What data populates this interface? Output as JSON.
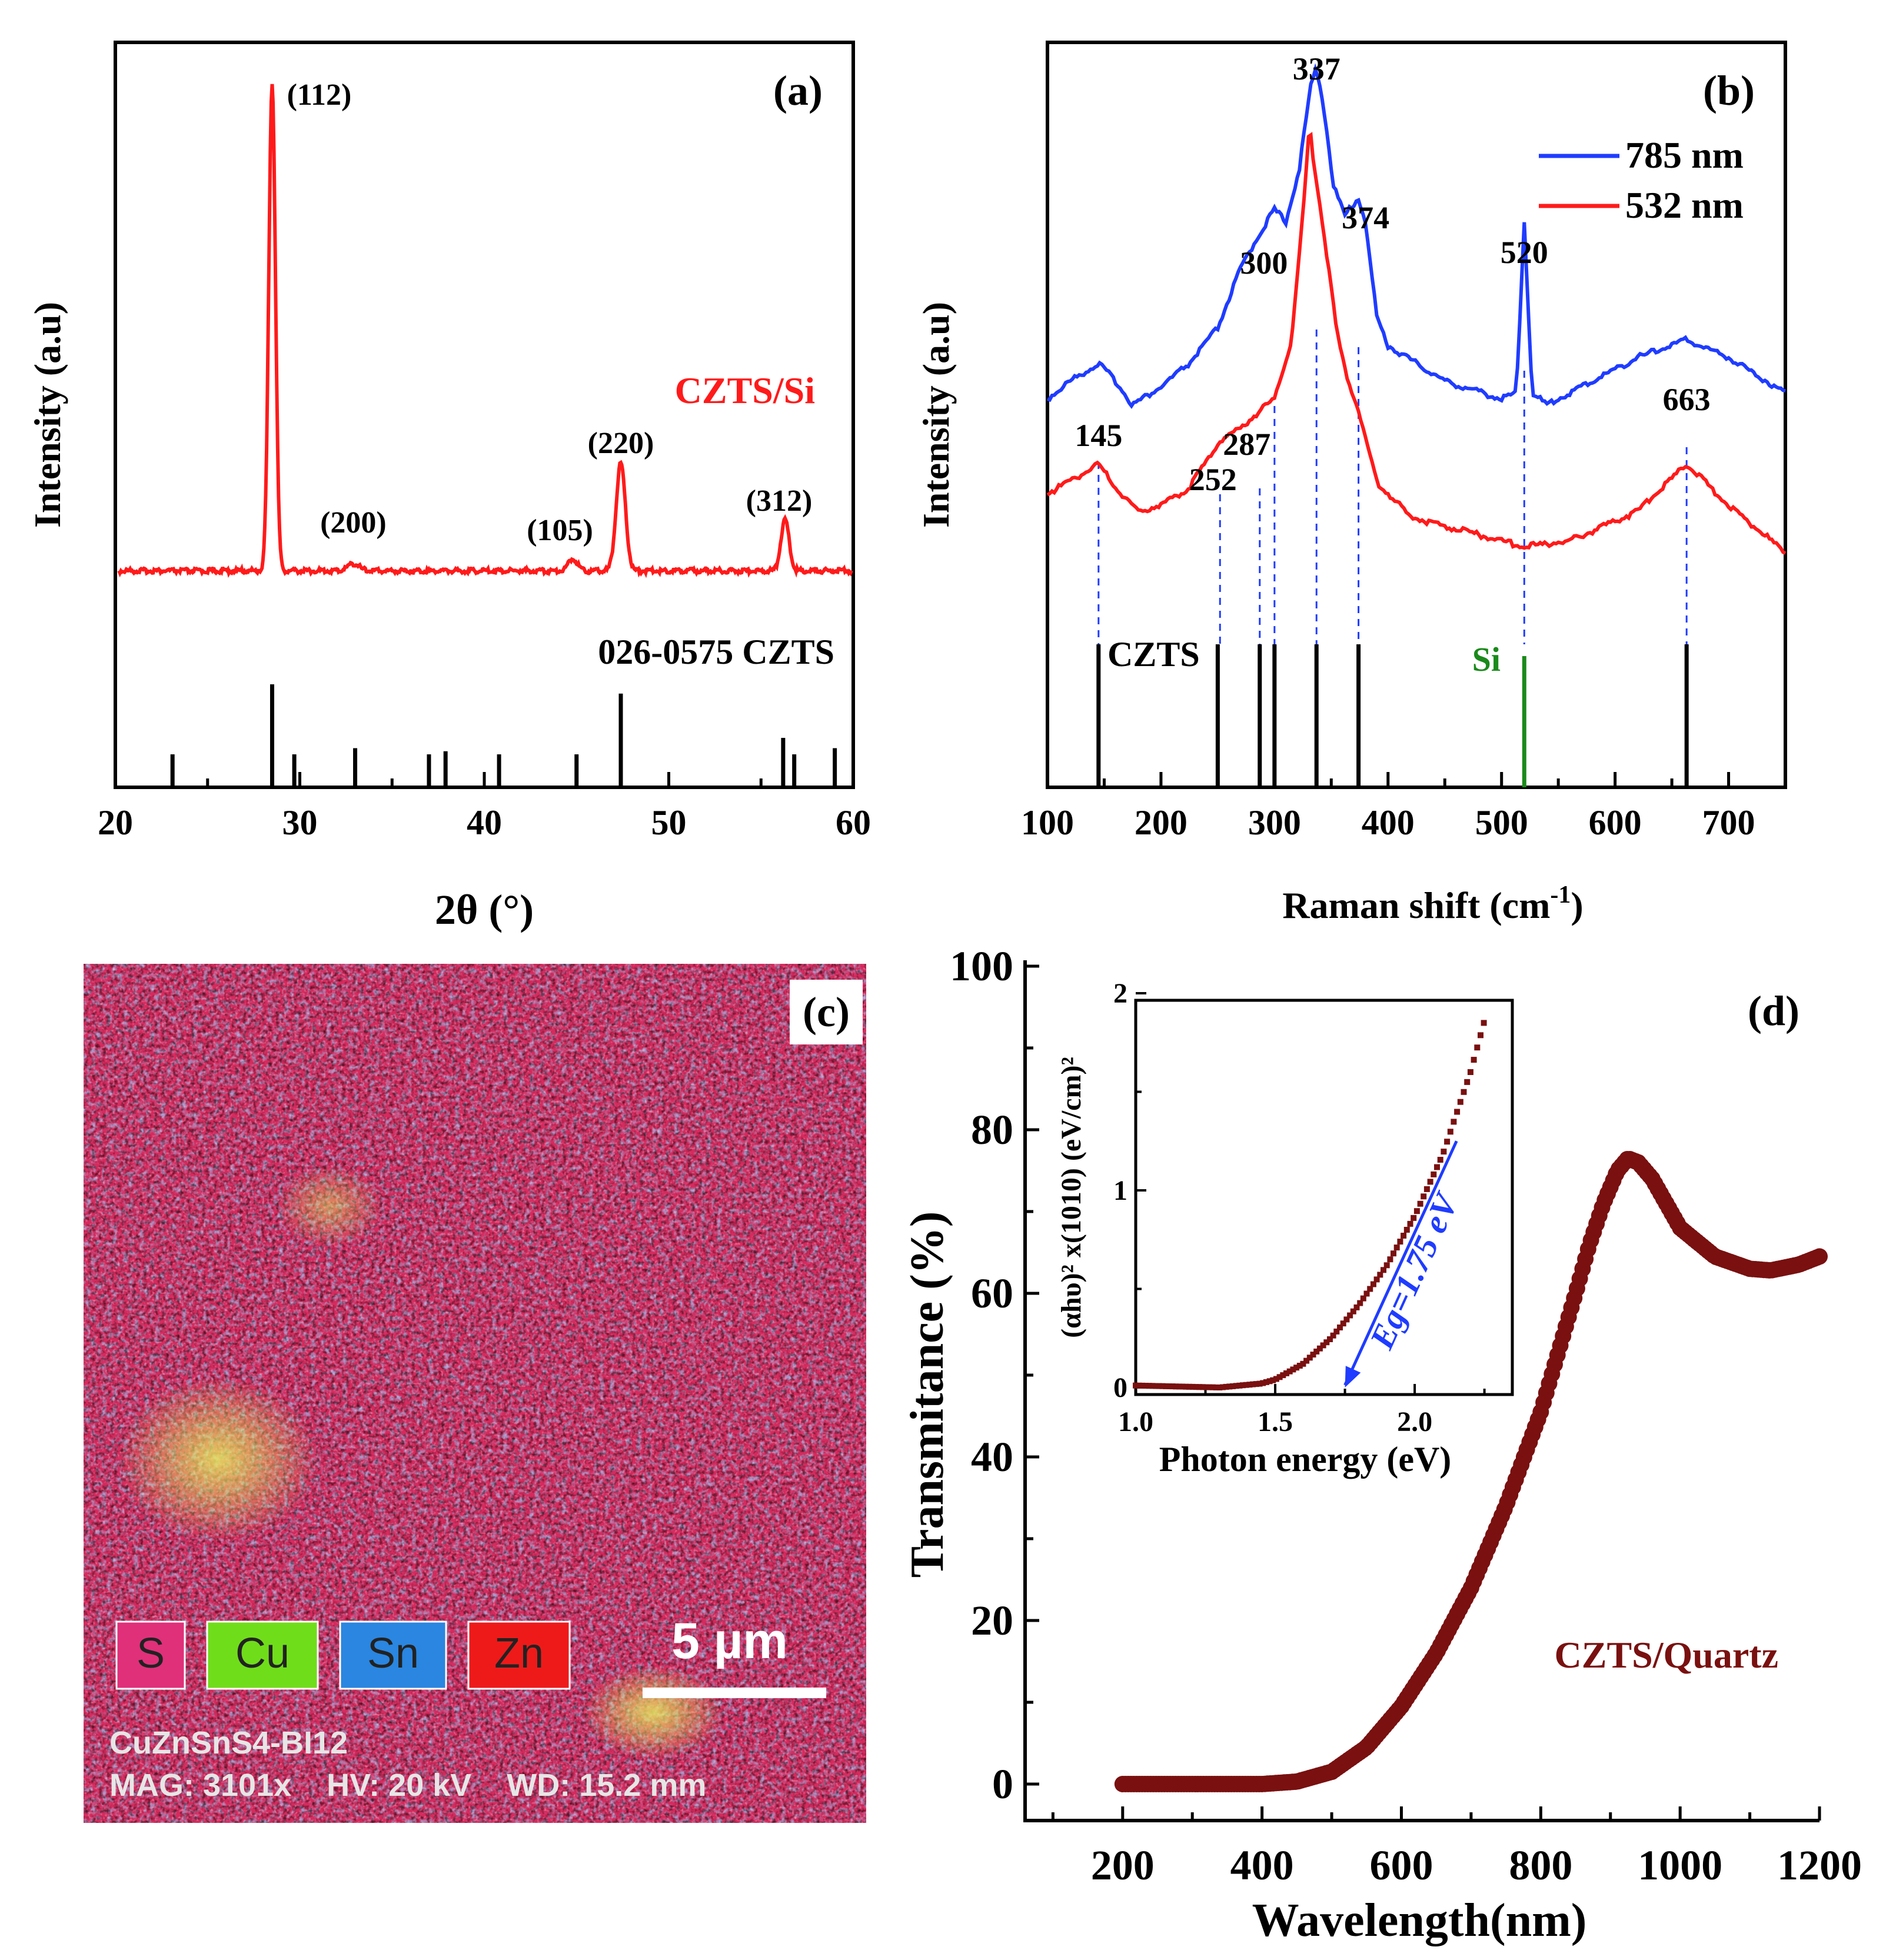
{
  "colors": {
    "red": "#ff1a1a",
    "blue": "#1f3cff",
    "maroon": "#7a1010",
    "green": "#1a8a1a",
    "black": "#000000",
    "S": "#e0307a",
    "Cu": "#70dd1a",
    "Sn": "#2a86e0",
    "Zn": "#ee1a1a"
  },
  "chart_data": [
    {
      "id": "a",
      "panel_label": "(a)",
      "type": "line",
      "title": "",
      "xlabel": "2θ (°)",
      "ylabel": "Intensity (a.u)",
      "xlim": [
        20,
        60
      ],
      "xticks": [
        "20",
        "30",
        "40",
        "50",
        "60"
      ],
      "series": [
        {
          "name": "CZTS/Si",
          "peaks": [
            {
              "x": 28.5,
              "height": 100,
              "width": 0.18
            },
            {
              "x": 32.9,
              "height": 1.5,
              "width": 0.3
            },
            {
              "x": 44.8,
              "height": 2.5,
              "width": 0.25
            },
            {
              "x": 47.4,
              "height": 22,
              "width": 0.25
            },
            {
              "x": 56.3,
              "height": 10.5,
              "width": 0.22
            }
          ]
        }
      ],
      "peak_labels": [
        {
          "x": 28.5,
          "text": "(112)"
        },
        {
          "x": 32.9,
          "text": "(200)"
        },
        {
          "x": 44.1,
          "text": "(105)"
        },
        {
          "x": 47.4,
          "text": "(220)"
        },
        {
          "x": 56.3,
          "text": "(312)"
        }
      ],
      "reference": {
        "name": "026-0575 CZTS",
        "lines": [
          {
            "x": 23.1,
            "intensity": 32
          },
          {
            "x": 28.5,
            "intensity": 100
          },
          {
            "x": 29.7,
            "intensity": 32
          },
          {
            "x": 33.0,
            "intensity": 38
          },
          {
            "x": 37.0,
            "intensity": 32
          },
          {
            "x": 37.9,
            "intensity": 35
          },
          {
            "x": 40.8,
            "intensity": 32
          },
          {
            "x": 45.0,
            "intensity": 32
          },
          {
            "x": 47.4,
            "intensity": 91
          },
          {
            "x": 56.2,
            "intensity": 48
          },
          {
            "x": 56.8,
            "intensity": 32
          },
          {
            "x": 59.0,
            "intensity": 38
          }
        ]
      }
    },
    {
      "id": "b",
      "panel_label": "(b)",
      "type": "line",
      "title": "",
      "xlabel": "Raman shift (cm-1)",
      "ylabel": "Intensity (a.u)",
      "xlim": [
        100,
        750
      ],
      "xticks": [
        "100",
        "200",
        "300",
        "400",
        "500",
        "600",
        "700"
      ],
      "series": [
        {
          "name": "785 nm",
          "color": "blue",
          "points": [
            [
              100,
              0.44
            ],
            [
              120,
              0.47
            ],
            [
              145,
              0.5
            ],
            [
              160,
              0.47
            ],
            [
              175,
              0.43
            ],
            [
              200,
              0.46
            ],
            [
              225,
              0.5
            ],
            [
              250,
              0.56
            ],
            [
              270,
              0.66
            ],
            [
              287,
              0.72
            ],
            [
              300,
              0.76
            ],
            [
              310,
              0.74
            ],
            [
              322,
              0.83
            ],
            [
              332,
              0.97
            ],
            [
              337,
              1.0
            ],
            [
              343,
              0.94
            ],
            [
              352,
              0.8
            ],
            [
              362,
              0.75
            ],
            [
              374,
              0.78
            ],
            [
              380,
              0.74
            ],
            [
              390,
              0.58
            ],
            [
              400,
              0.53
            ],
            [
              450,
              0.47
            ],
            [
              500,
              0.44
            ],
            [
              513,
              0.45
            ],
            [
              520,
              0.74
            ],
            [
              527,
              0.45
            ],
            [
              540,
              0.43
            ],
            [
              580,
              0.47
            ],
            [
              620,
              0.51
            ],
            [
              663,
              0.54
            ],
            [
              700,
              0.51
            ],
            [
              750,
              0.45
            ]
          ]
        },
        {
          "name": "532 nm",
          "color": "red",
          "points": [
            [
              100,
              0.28
            ],
            [
              120,
              0.3
            ],
            [
              145,
              0.33
            ],
            [
              160,
              0.29
            ],
            [
              180,
              0.25
            ],
            [
              200,
              0.26
            ],
            [
              225,
              0.29
            ],
            [
              252,
              0.37
            ],
            [
              270,
              0.39
            ],
            [
              287,
              0.42
            ],
            [
              300,
              0.44
            ],
            [
              315,
              0.54
            ],
            [
              325,
              0.75
            ],
            [
              331,
              0.91
            ],
            [
              334,
              0.85
            ],
            [
              345,
              0.7
            ],
            [
              355,
              0.55
            ],
            [
              365,
              0.47
            ],
            [
              374,
              0.42
            ],
            [
              390,
              0.3
            ],
            [
              420,
              0.24
            ],
            [
              460,
              0.22
            ],
            [
              520,
              0.19
            ],
            [
              560,
              0.2
            ],
            [
              620,
              0.25
            ],
            [
              663,
              0.33
            ],
            [
              700,
              0.26
            ],
            [
              750,
              0.18
            ]
          ]
        }
      ],
      "peak_labels": [
        {
          "x": 145,
          "text": "145"
        },
        {
          "x": 252,
          "text": "252"
        },
        {
          "x": 287,
          "text": "287"
        },
        {
          "x": 300,
          "text": "300"
        },
        {
          "x": 337,
          "text": "337"
        },
        {
          "x": 374,
          "text": "374"
        },
        {
          "x": 520,
          "text": "520"
        },
        {
          "x": 663,
          "text": "663"
        }
      ],
      "reference": {
        "CZTS_label": "CZTS",
        "Si_label": "Si",
        "CZTS_lines": [
          145,
          250,
          287,
          300,
          337,
          374,
          663
        ],
        "Si_lines": [
          520
        ]
      }
    },
    {
      "id": "d",
      "panel_label": "(d)",
      "type": "scatter",
      "title": "",
      "xlabel": "Wavelength(nm)",
      "ylabel": "Transmitance (%)",
      "xlim": [
        60,
        1200
      ],
      "ylim": [
        -3,
        100
      ],
      "xticks": [
        "200",
        "400",
        "600",
        "800",
        "1000",
        "1200"
      ],
      "yticks": [
        "0",
        "20",
        "40",
        "60",
        "80",
        "100"
      ],
      "series": [
        {
          "name": "CZTS/Quartz",
          "color": "maroon",
          "points": [
            [
              200,
              0
            ],
            [
              300,
              0
            ],
            [
              400,
              0
            ],
            [
              450,
              0.3
            ],
            [
              500,
              1.5
            ],
            [
              550,
              4.5
            ],
            [
              600,
              9.5
            ],
            [
              650,
              16
            ],
            [
              700,
              24
            ],
            [
              750,
              34
            ],
            [
              800,
              45.5
            ],
            [
              850,
              60
            ],
            [
              870,
              66
            ],
            [
              890,
              71
            ],
            [
              910,
              75
            ],
            [
              925,
              76.5
            ],
            [
              940,
              76
            ],
            [
              960,
              74
            ],
            [
              1000,
              68
            ],
            [
              1050,
              64.5
            ],
            [
              1100,
              63
            ],
            [
              1130,
              62.8
            ],
            [
              1170,
              63.5
            ],
            [
              1200,
              64.5
            ]
          ]
        }
      ],
      "inset": {
        "type": "scatter",
        "xlabel": "Photon energy (eV)",
        "ylabel": "(αhυ)² x(1010) (eV/cm)²",
        "xlim": [
          1.0,
          2.35
        ],
        "ylim": [
          0,
          2
        ],
        "xticks": [
          "1.0",
          "1.5",
          "2.0"
        ],
        "yticks": [
          "0",
          "1",
          "2"
        ],
        "annotation": "Eg=1.75 eV",
        "fit_line": [
          [
            1.75,
            0.0
          ],
          [
            2.15,
            1.25
          ]
        ],
        "points": [
          [
            1.0,
            0.01
          ],
          [
            1.3,
            0.0
          ],
          [
            1.45,
            0.02
          ],
          [
            1.5,
            0.04
          ],
          [
            1.6,
            0.12
          ],
          [
            1.7,
            0.25
          ],
          [
            1.8,
            0.42
          ],
          [
            1.9,
            0.62
          ],
          [
            2.0,
            0.87
          ],
          [
            2.1,
            1.18
          ],
          [
            2.2,
            1.6
          ],
          [
            2.25,
            1.86
          ]
        ]
      }
    }
  ],
  "panel_c": {
    "panel_label": "(c)",
    "legend": [
      "S",
      "Cu",
      "Sn",
      "Zn"
    ],
    "scale_bar": "5 µm",
    "caption_line1": "CuZnSnS4-BI12",
    "caption_line2": "MAG: 3101x    HV: 20 kV    WD: 15.2 mm"
  }
}
